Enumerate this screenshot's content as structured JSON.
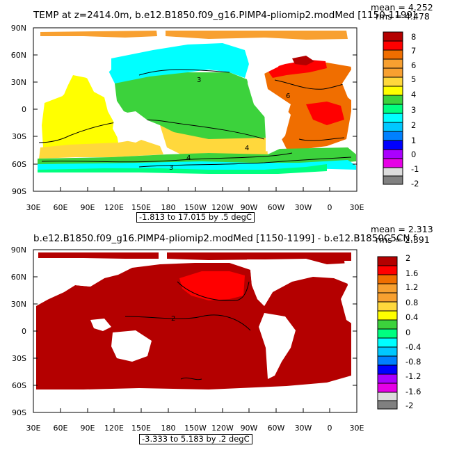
{
  "panels": [
    {
      "title": "TEMP at z=2414.0m, b.e12.B1850.f09_g16.PIMP4-pliomip2.modMed [1150-1199]",
      "mean": "mean = 4.252",
      "rms": "rms = 4.478",
      "range_text": "-1.813 to 17.015 by .5 degC",
      "contour_labels": [
        "3",
        "6",
        "4",
        "4",
        "3"
      ],
      "colorbar": {
        "labels": [
          "8",
          "7",
          "6",
          "5",
          "4",
          "3",
          "2",
          "1",
          "0",
          "-1",
          "-2"
        ],
        "colors": [
          "#b40000",
          "#ff0000",
          "#f06e00",
          "#f8a030",
          "#ffd83c",
          "#ffff00",
          "#3cd23c",
          "#00ff80",
          "#00ffff",
          "#00c8ff",
          "#0080ff",
          "#0000ff",
          "#aa00ff",
          "#e600e6",
          "#dcdcdc",
          "#808080"
        ]
      }
    },
    {
      "title": "b.e12.B1850.f09_g16.PIMP4-pliomip2.modMed [1150-1199] - b.e12.B1850C5CN.f",
      "mean": "mean = 2.313",
      "rms": "rms = 2.391",
      "range_text": "-3.333 to 5.183 by .2 degC",
      "contour_labels": [
        "2"
      ],
      "colorbar": {
        "labels": [
          "2",
          "1.6",
          "1.2",
          "0.8",
          "0.4",
          "0",
          "-0.4",
          "-0.8",
          "-1.2",
          "-1.6",
          "-2"
        ],
        "colors": [
          "#b40000",
          "#ff0000",
          "#f06e00",
          "#f8a030",
          "#ffd83c",
          "#ffff00",
          "#3cd23c",
          "#00ff80",
          "#00ffff",
          "#00c8ff",
          "#0080ff",
          "#0000ff",
          "#aa00ff",
          "#e600e6",
          "#dcdcdc",
          "#808080"
        ]
      }
    }
  ],
  "lat_ticks": [
    "90N",
    "60N",
    "30N",
    "0",
    "30S",
    "60S",
    "90S"
  ],
  "lon_ticks": [
    "30E",
    "60E",
    "90E",
    "120E",
    "150E",
    "180",
    "150W",
    "120W",
    "90W",
    "60W",
    "30W",
    "0",
    "30E"
  ]
}
